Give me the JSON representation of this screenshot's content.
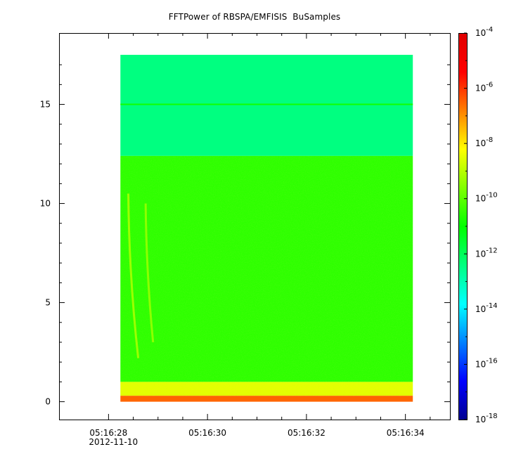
{
  "chart_data": {
    "type": "heatmap",
    "title": "FFTPower of RBSPA/EMFISIS  BuSamples",
    "x_axis": {
      "ticks": [
        {
          "value": 28,
          "label": "05:16:28"
        },
        {
          "value": 30,
          "label": "05:16:30"
        },
        {
          "value": 32,
          "label": "05:16:32"
        },
        {
          "value": 34,
          "label": "05:16:34"
        }
      ],
      "minor_ticks": [
        28.5,
        29,
        29.5,
        30.5,
        31,
        31.5,
        32.5,
        33,
        33.5,
        34.5
      ],
      "date_label": "2012-11-10",
      "range_seconds": [
        27.0,
        34.9
      ]
    },
    "y_axis": {
      "ticks": [
        0,
        5,
        10,
        15
      ],
      "minor_ticks": [
        1,
        2,
        3,
        4,
        6,
        7,
        8,
        9,
        11,
        12,
        13,
        14,
        16,
        17
      ],
      "range": [
        -0.9,
        18.6
      ]
    },
    "colorbar": {
      "scale": "log",
      "range_exponent": [
        -18,
        -4
      ],
      "tick_labels": [
        {
          "base": "10",
          "exp": "-4"
        },
        {
          "base": "10",
          "exp": "-6"
        },
        {
          "base": "10",
          "exp": "-8"
        },
        {
          "base": "10",
          "exp": "-10"
        },
        {
          "base": "10",
          "exp": "-12"
        },
        {
          "base": "10",
          "exp": "-14"
        },
        {
          "base": "10",
          "exp": "-16"
        },
        {
          "base": "10",
          "exp": "-18"
        }
      ],
      "colormap": [
        "#00008f",
        "#0000ff",
        "#0080ff",
        "#00ffff",
        "#00ff80",
        "#00ff00",
        "#80ff00",
        "#ffff00",
        "#ff8000",
        "#ff0000",
        "#e00000"
      ]
    },
    "data_region": {
      "time_start_seconds": 28.24,
      "time_end_seconds": 34.15,
      "freq_min": 0,
      "freq_max": 17.5
    },
    "bands": [
      {
        "freq_from": 12.4,
        "freq_to": 17.5,
        "level_exponent": -12.4
      },
      {
        "freq_from": 1.0,
        "freq_to": 12.4,
        "level_exponent": -10.5
      },
      {
        "freq_from": 0.3,
        "freq_to": 1.0,
        "level_exponent": -8.5
      },
      {
        "freq_from": 0.0,
        "freq_to": 0.3,
        "level_exponent": -6.5
      }
    ],
    "features": [
      {
        "freq": 15.0,
        "level_exponent": -10.8
      },
      {
        "time_seconds_at_top": 28.4,
        "time_seconds_at_bottom": 28.6,
        "freq_top": 10.5,
        "freq_bottom": 2.2,
        "level_exponent": -9.0
      },
      {
        "time_seconds_at_top": 28.75,
        "time_seconds_at_bottom": 28.9,
        "freq_top": 10.0,
        "freq_bottom": 3.0,
        "level_exponent": -9.2
      }
    ]
  }
}
